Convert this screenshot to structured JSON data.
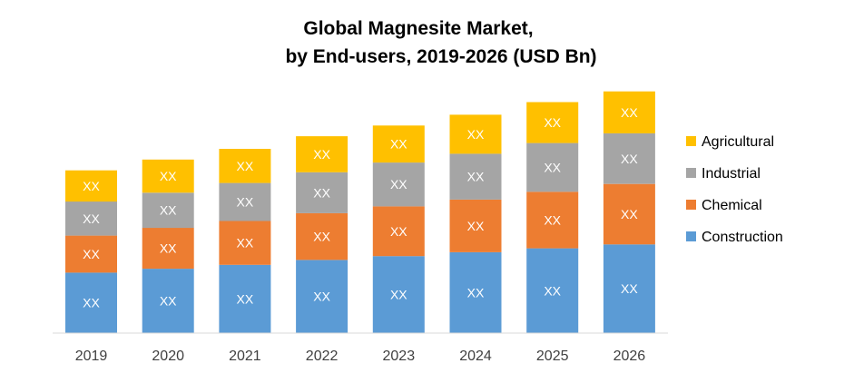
{
  "chart_data": {
    "type": "bar",
    "stacked": true,
    "title": [
      "Global Magnesite Market,",
      "by End-users, 2019-2026 (USD Bn)"
    ],
    "xlabel": "",
    "ylabel": "",
    "categories": [
      "2019",
      "2020",
      "2021",
      "2022",
      "2023",
      "2024",
      "2025",
      "2026"
    ],
    "ylim": [
      0,
      250
    ],
    "grid": false,
    "legend_position": "right",
    "series": [
      {
        "name": "Construction",
        "color": "#5B9BD5",
        "values": [
          62,
          66,
          70,
          75,
          79,
          83,
          87,
          91
        ],
        "labels": [
          "XX",
          "XX",
          "XX",
          "XX",
          "XX",
          "XX",
          "XX",
          "XX"
        ]
      },
      {
        "name": "Chemical",
        "color": "#ED7D31",
        "values": [
          38,
          42,
          45,
          48,
          51,
          54,
          58,
          62
        ],
        "labels": [
          "XX",
          "XX",
          "XX",
          "XX",
          "XX",
          "XX",
          "XX",
          "XX"
        ]
      },
      {
        "name": "Industrial",
        "color": "#A5A5A5",
        "values": [
          35,
          36,
          39,
          42,
          45,
          47,
          50,
          52
        ],
        "labels": [
          "XX",
          "XX",
          "XX",
          "XX",
          "XX",
          "XX",
          "XX",
          "XX"
        ]
      },
      {
        "name": "Agricultural",
        "color": "#FFC000",
        "values": [
          32,
          34,
          35,
          37,
          38,
          40,
          42,
          43
        ],
        "labels": [
          "XX",
          "XX",
          "XX",
          "XX",
          "XX",
          "XX",
          "XX",
          "XX"
        ]
      }
    ],
    "legend_order": [
      "Agricultural",
      "Industrial",
      "Chemical",
      "Construction"
    ]
  }
}
